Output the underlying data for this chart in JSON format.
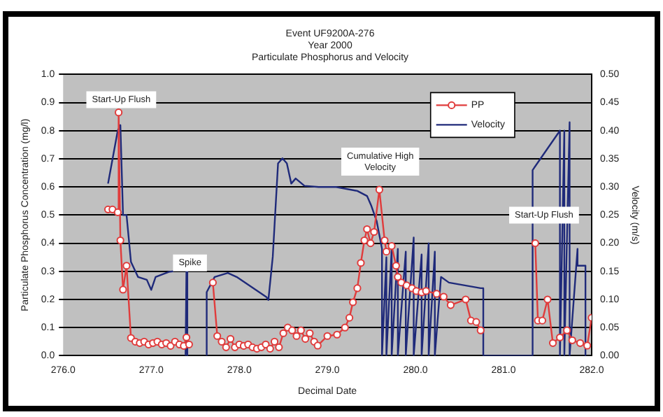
{
  "chart_data": {
    "type": "line",
    "title": [
      "Event UF9200A-276",
      "Year 2000",
      "Particulate Phosphorus and Velocity"
    ],
    "xlabel": "Decimal Date",
    "ylabel": "Particulate Phosphorus Concentration (mg/l)",
    "y2label": "Velocity (m/s)",
    "xlim": [
      276,
      282
    ],
    "xticks": [
      {
        "value": 276,
        "label": "276.0"
      },
      {
        "value": 277,
        "label": "277.0"
      },
      {
        "value": 278,
        "label": "278.0"
      },
      {
        "value": 279,
        "label": "279.0"
      },
      {
        "value": 280,
        "label": "280.0"
      },
      {
        "value": 281,
        "label": "281.0"
      },
      {
        "value": 282,
        "label": "282.0"
      }
    ],
    "ylim": [
      0,
      1
    ],
    "yticks": [
      {
        "value": 0,
        "label": "0.0"
      },
      0.1,
      0.2,
      0.3,
      0.4,
      0.5,
      0.6,
      0.7,
      0.8,
      0.9,
      {
        "value": 1,
        "label": "1.0"
      }
    ],
    "y2lim": [
      0,
      0.5
    ],
    "y2ticks": [
      {
        "value": 0,
        "label": "0.00"
      },
      0.05,
      {
        "value": 0.1,
        "label": "0.10"
      },
      0.15,
      {
        "value": 0.2,
        "label": "0.20"
      },
      0.25,
      {
        "value": 0.3,
        "label": "0.30"
      },
      0.35,
      {
        "value": 0.4,
        "label": "0.40"
      },
      0.45,
      {
        "value": 0.5,
        "label": "0.50"
      }
    ],
    "grid": "y",
    "legend": "top right",
    "series": [
      {
        "name": "PP",
        "color": "#e03c3c",
        "marker": "circle",
        "x": [
          276.51,
          276.56,
          276.62,
          276.63,
          276.65,
          276.68,
          276.72,
          276.77,
          276.82,
          276.87,
          276.92,
          276.97,
          277.02,
          277.07,
          277.12,
          277.17,
          277.22,
          277.27,
          277.32,
          277.37,
          277.4,
          277.43,
          277.55,
          277.7,
          277.75,
          277.8,
          277.85,
          277.9,
          277.95,
          278.0,
          278.05,
          278.1,
          278.15,
          278.2,
          278.25,
          278.3,
          278.35,
          278.4,
          278.45,
          278.5,
          278.55,
          278.6,
          278.65,
          278.7,
          278.75,
          278.8,
          278.85,
          278.89,
          279.0,
          279.11,
          279.2,
          279.25,
          279.29,
          279.34,
          279.38,
          279.42,
          279.45,
          279.49,
          279.53,
          279.59,
          279.65,
          279.67,
          279.73,
          279.78,
          279.8,
          279.84,
          279.9,
          279.96,
          280.01,
          280.07,
          280.12,
          280.24,
          280.32,
          280.4,
          280.57,
          280.63,
          280.69,
          280.74,
          281.0,
          281.36,
          281.39,
          281.44,
          281.5,
          281.56,
          281.64,
          281.72,
          281.78,
          281.87,
          281.95,
          282.0
        ],
        "values": [
          0.52,
          0.52,
          0.51,
          0.865,
          0.41,
          0.235,
          0.32,
          0.063,
          0.05,
          0.045,
          0.05,
          0.04,
          0.045,
          0.05,
          0.04,
          0.045,
          0.035,
          0.05,
          0.04,
          0.035,
          0.065,
          0.04,
          null,
          0.26,
          0.07,
          0.05,
          0.03,
          0.06,
          0.03,
          0.04,
          0.035,
          0.04,
          0.03,
          0.025,
          0.03,
          0.04,
          0.025,
          0.05,
          0.03,
          0.08,
          0.1,
          0.09,
          0.07,
          0.09,
          0.06,
          0.08,
          0.05,
          0.036,
          0.07,
          0.075,
          0.1,
          0.135,
          0.19,
          0.24,
          0.33,
          0.41,
          0.45,
          0.4,
          0.44,
          0.59,
          0.41,
          0.37,
          0.39,
          0.32,
          0.28,
          0.26,
          0.25,
          0.24,
          0.23,
          0.225,
          0.23,
          0.22,
          0.21,
          0.18,
          0.2,
          0.125,
          0.12,
          0.09,
          null,
          0.4,
          0.125,
          0.125,
          0.2,
          0.045,
          0.065,
          0.09,
          0.055,
          0.045,
          0.036,
          0.135
        ]
      },
      {
        "name": "Velocity",
        "color": "#1f2a7a",
        "axis": "y2",
        "x": [
          276.51,
          276.62,
          276.65,
          276.68,
          276.72,
          276.77,
          276.85,
          276.95,
          277.0,
          277.05,
          277.2,
          277.25,
          277.3,
          277.39,
          277.4,
          277.41,
          277.5,
          277.63,
          277.63,
          277.72,
          277.87,
          277.97,
          278.31,
          278.33,
          278.38,
          278.44,
          278.49,
          278.54,
          278.59,
          278.64,
          278.74,
          278.9,
          279.1,
          279.34,
          279.45,
          279.5,
          279.56,
          279.62,
          279.62,
          279.67,
          279.67,
          279.73,
          279.73,
          279.8,
          279.8,
          279.89,
          279.89,
          279.98,
          279.98,
          280.07,
          280.07,
          280.15,
          280.15,
          280.22,
          280.22,
          280.29,
          280.29,
          280.38,
          280.74,
          280.77,
          280.77,
          281.33,
          281.33,
          281.64,
          281.64,
          281.69,
          281.69,
          281.75,
          281.75,
          281.84,
          281.84,
          281.93,
          281.93
        ],
        "values": [
          0.306,
          0.4,
          0.41,
          0.25,
          0.25,
          0.167,
          0.14,
          0.135,
          0.117,
          0.14,
          0.149,
          0.15,
          null,
          0,
          0.153,
          0,
          null,
          0,
          0.113,
          0.14,
          0.147,
          0.14,
          0.104,
          0.099,
          0.176,
          0.342,
          0.351,
          0.342,
          0.306,
          0.315,
          0.302,
          0.3,
          0.3,
          0.293,
          0.284,
          0.266,
          0.239,
          0.19,
          0,
          0.175,
          0,
          0.19,
          0,
          0.19,
          0,
          0.185,
          0,
          0.21,
          0,
          0.18,
          0,
          0.2,
          0,
          0.185,
          0,
          0.14,
          0.14,
          0.13,
          0.12,
          0.12,
          0,
          0,
          0.33,
          0.4,
          0,
          0.4,
          0,
          0.415,
          0,
          0.19,
          0.16,
          0.16,
          0
        ]
      }
    ],
    "annotations": [
      "Start-Up Flush",
      "Spike",
      "Cumulative High Velocity",
      "Start-Up Flush"
    ]
  }
}
